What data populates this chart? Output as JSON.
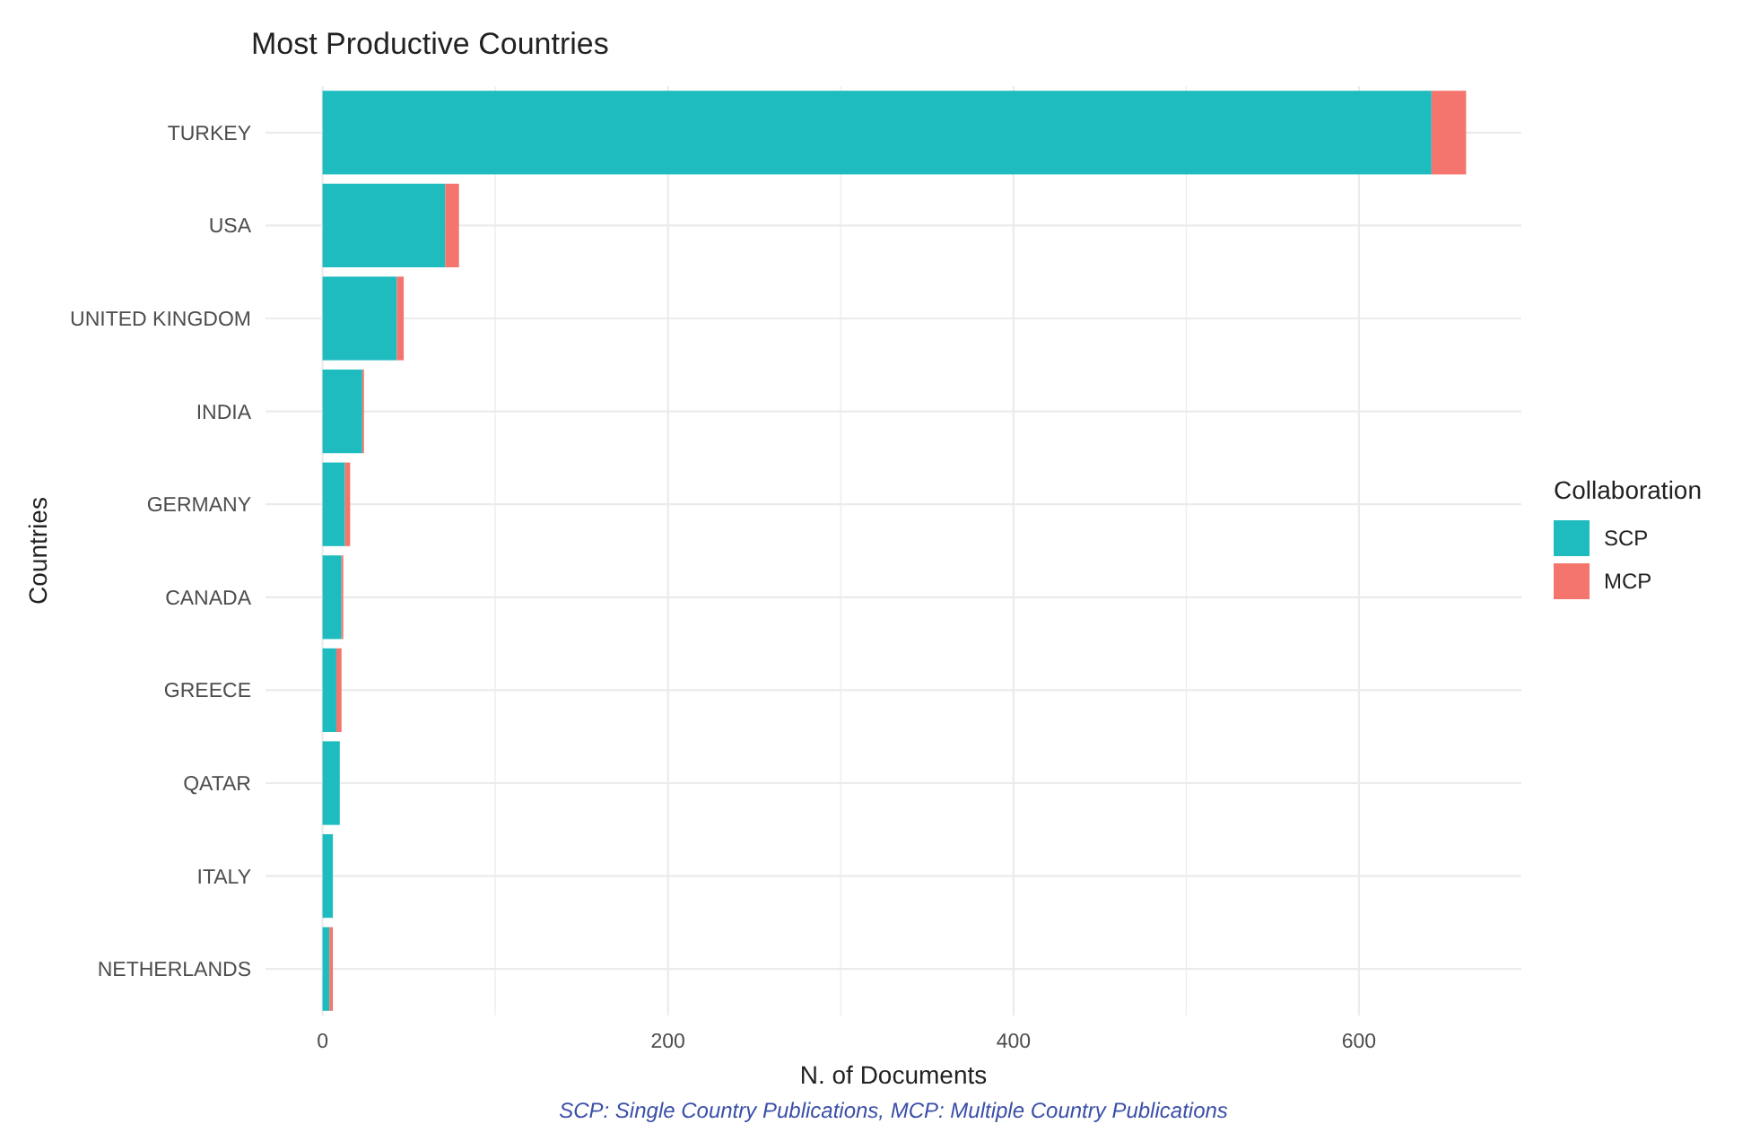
{
  "chart_data": {
    "type": "bar",
    "orientation": "horizontal",
    "stacked": true,
    "title": "Most Productive Countries",
    "xlabel": "N. of Documents",
    "ylabel": "Countries",
    "legend_title": "Collaboration",
    "legend": "right",
    "grid": true,
    "categories": [
      "TURKEY",
      "USA",
      "UNITED KINGDOM",
      "INDIA",
      "GERMANY",
      "CANADA",
      "GREECE",
      "QATAR",
      "ITALY",
      "NETHERLANDS"
    ],
    "series": [
      {
        "name": "SCP",
        "color": "#1fbcbf",
        "values": [
          642,
          71,
          43,
          23,
          13,
          11,
          8,
          10,
          6,
          4
        ]
      },
      {
        "name": "MCP",
        "color": "#f4756d",
        "values": [
          20,
          8,
          4,
          1,
          3,
          1,
          3,
          0,
          0,
          2
        ]
      }
    ],
    "xlim": [
      -33,
      694
    ],
    "xticks": [
      0,
      200,
      400,
      600
    ],
    "annotations": [
      "SCP: Single Country Publications, MCP: Multiple Country Publications"
    ]
  }
}
